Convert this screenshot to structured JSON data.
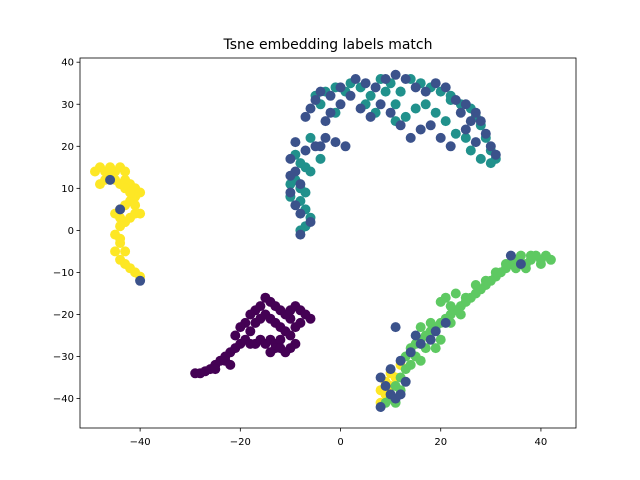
{
  "chart_data": {
    "type": "scatter",
    "title": "Tsne embedding labels match",
    "xlabel": "",
    "ylabel": "",
    "xlim": [
      -52,
      47
    ],
    "ylim": [
      -47,
      41
    ],
    "xticks": [
      -40,
      -20,
      0,
      20,
      40
    ],
    "yticks": [
      -40,
      -30,
      -20,
      -10,
      0,
      10,
      20,
      30,
      40
    ],
    "xtick_labels": [
      "−40",
      "−20",
      "0",
      "20",
      "40"
    ],
    "ytick_labels": [
      "−40",
      "−30",
      "−20",
      "−10",
      "0",
      "10",
      "20",
      "30",
      "40"
    ],
    "grid": false,
    "legend": "none",
    "colors": {
      "purple": "#440154",
      "blue": "#3b528b",
      "teal": "#21918c",
      "green": "#5ec962",
      "yellow": "#fde725"
    },
    "clusters": [
      {
        "color": "purple",
        "points": [
          [
            -29,
            -34
          ],
          [
            -27,
            -33.5
          ],
          [
            -26,
            -33
          ],
          [
            -25,
            -32
          ],
          [
            -24,
            -31
          ],
          [
            -23,
            -31
          ],
          [
            -22,
            -32
          ],
          [
            -22,
            -29
          ],
          [
            -21,
            -28
          ],
          [
            -20,
            -27
          ],
          [
            -19,
            -26
          ],
          [
            -18,
            -27
          ],
          [
            -17,
            -27
          ],
          [
            -16,
            -26
          ],
          [
            -15,
            -27
          ],
          [
            -14,
            -26
          ],
          [
            -13,
            -27
          ],
          [
            -12,
            -26
          ],
          [
            -13,
            -28
          ],
          [
            -14,
            -29
          ],
          [
            -18,
            -24
          ],
          [
            -19,
            -22
          ],
          [
            -17,
            -22
          ],
          [
            -16,
            -21
          ],
          [
            -15,
            -20
          ],
          [
            -14,
            -21
          ],
          [
            -13,
            -22
          ],
          [
            -12,
            -23
          ],
          [
            -11,
            -24
          ],
          [
            -10,
            -25
          ],
          [
            -9,
            -23
          ],
          [
            -10,
            -21
          ],
          [
            -11,
            -20
          ],
          [
            -12,
            -19
          ],
          [
            -13,
            -18
          ],
          [
            -14,
            -17
          ],
          [
            -15,
            -16
          ],
          [
            -16,
            -18
          ],
          [
            -17,
            -19
          ],
          [
            -18,
            -20
          ],
          [
            -10,
            -19
          ],
          [
            -9,
            -18
          ],
          [
            -8,
            -19
          ],
          [
            -7,
            -20
          ],
          [
            -6,
            -21
          ],
          [
            -8,
            -22
          ],
          [
            -9,
            -27
          ],
          [
            -10,
            -28
          ],
          [
            -11,
            -29
          ],
          [
            -12,
            -28
          ],
          [
            -20,
            -23
          ],
          [
            -21,
            -25
          ],
          [
            -23,
            -30
          ],
          [
            -25,
            -33
          ],
          [
            -28,
            -34
          ]
        ]
      },
      {
        "color": "yellow",
        "points": [
          [
            -49,
            14
          ],
          [
            -48,
            15
          ],
          [
            -47,
            14
          ],
          [
            -46,
            15
          ],
          [
            -45,
            14
          ],
          [
            -44,
            15
          ],
          [
            -43,
            14
          ],
          [
            -45,
            12
          ],
          [
            -44,
            11
          ],
          [
            -43,
            12
          ],
          [
            -42,
            11
          ],
          [
            -41,
            10
          ],
          [
            -40,
            9
          ],
          [
            -41,
            8
          ],
          [
            -42,
            7
          ],
          [
            -43,
            6
          ],
          [
            -44,
            5
          ],
          [
            -45,
            4
          ],
          [
            -44,
            3
          ],
          [
            -43,
            2
          ],
          [
            -42,
            3
          ],
          [
            -41,
            4
          ],
          [
            -40,
            4
          ],
          [
            -44,
            1
          ],
          [
            -45,
            -1
          ],
          [
            -44,
            -3
          ],
          [
            -45,
            -5
          ],
          [
            -44,
            -7
          ],
          [
            -43,
            -8
          ],
          [
            -42,
            -9
          ],
          [
            -41,
            -10
          ],
          [
            -40,
            -11
          ],
          [
            -46,
            13
          ],
          [
            -47,
            12
          ],
          [
            -48,
            11
          ],
          [
            -43,
            10
          ],
          [
            -42,
            9
          ],
          [
            -41,
            6
          ],
          [
            -44,
            -2
          ],
          [
            -43,
            -5
          ],
          [
            10,
            -34
          ],
          [
            9,
            -36
          ],
          [
            8,
            -38
          ],
          [
            9,
            -39
          ],
          [
            10,
            -37
          ],
          [
            11,
            -35
          ],
          [
            8,
            -41
          ],
          [
            12,
            -32
          ]
        ]
      },
      {
        "color": "green",
        "points": [
          [
            42,
            -7
          ],
          [
            41,
            -6
          ],
          [
            40,
            -7
          ],
          [
            39,
            -6
          ],
          [
            38,
            -7
          ],
          [
            37,
            -8
          ],
          [
            36,
            -6
          ],
          [
            35,
            -7
          ],
          [
            34,
            -8
          ],
          [
            33,
            -9
          ],
          [
            32,
            -10
          ],
          [
            31,
            -11
          ],
          [
            30,
            -12
          ],
          [
            29,
            -13
          ],
          [
            28,
            -14
          ],
          [
            27,
            -15
          ],
          [
            26,
            -16
          ],
          [
            25,
            -17
          ],
          [
            24,
            -18
          ],
          [
            23,
            -19
          ],
          [
            22,
            -20
          ],
          [
            21,
            -21
          ],
          [
            20,
            -22
          ],
          [
            19,
            -23
          ],
          [
            18,
            -24
          ],
          [
            17,
            -25
          ],
          [
            16,
            -26
          ],
          [
            15,
            -27
          ],
          [
            14,
            -28
          ],
          [
            15,
            -30
          ],
          [
            16,
            -31
          ],
          [
            14,
            -32
          ],
          [
            13,
            -33
          ],
          [
            12,
            -35
          ],
          [
            11,
            -37
          ],
          [
            12,
            -38
          ],
          [
            10,
            -40
          ],
          [
            11,
            -41
          ],
          [
            20,
            -17
          ],
          [
            21,
            -16
          ],
          [
            23,
            -15
          ],
          [
            25,
            -16
          ],
          [
            22,
            -18
          ],
          [
            27,
            -13
          ],
          [
            29,
            -12
          ],
          [
            31,
            -10
          ],
          [
            33,
            -8
          ],
          [
            35,
            -9
          ],
          [
            38,
            -6
          ],
          [
            40,
            -8
          ],
          [
            37,
            -9
          ],
          [
            20,
            -26
          ],
          [
            19,
            -28
          ],
          [
            17,
            -28
          ],
          [
            18,
            -22
          ],
          [
            24,
            -20
          ],
          [
            22,
            -22
          ],
          [
            16,
            -23
          ],
          [
            13,
            -30
          ],
          [
            9,
            -41
          ]
        ]
      },
      {
        "color": "teal",
        "points": [
          [
            -9,
            18
          ],
          [
            -8,
            16
          ],
          [
            -7,
            15
          ],
          [
            -6,
            14
          ],
          [
            -9,
            12
          ],
          [
            -8,
            10
          ],
          [
            -7,
            9
          ],
          [
            -8,
            7
          ],
          [
            -7,
            5
          ],
          [
            -6,
            3
          ],
          [
            -7,
            1
          ],
          [
            -8,
            0
          ],
          [
            -10,
            11
          ],
          [
            -10,
            8
          ],
          [
            -5,
            32
          ],
          [
            -4,
            30
          ],
          [
            -3,
            33
          ],
          [
            -1,
            34
          ],
          [
            1,
            33
          ],
          [
            2,
            35
          ],
          [
            4,
            34
          ],
          [
            6,
            32
          ],
          [
            8,
            36
          ],
          [
            10,
            35
          ],
          [
            12,
            33
          ],
          [
            14,
            36
          ],
          [
            16,
            35
          ],
          [
            18,
            34
          ],
          [
            20,
            33
          ],
          [
            22,
            32
          ],
          [
            24,
            30
          ],
          [
            26,
            29
          ],
          [
            28,
            25
          ],
          [
            29,
            22
          ],
          [
            30,
            19
          ],
          [
            31,
            17
          ],
          [
            28,
            17
          ],
          [
            26,
            19
          ],
          [
            23,
            23
          ],
          [
            21,
            26
          ],
          [
            19,
            28
          ],
          [
            17,
            30
          ],
          [
            15,
            29
          ],
          [
            13,
            27
          ],
          [
            11,
            30
          ],
          [
            9,
            33
          ],
          [
            27,
            27
          ],
          [
            25,
            22
          ],
          [
            30,
            16
          ],
          [
            -1,
            28
          ],
          [
            7,
            28
          ],
          [
            -6,
            22
          ],
          [
            -4,
            17
          ],
          [
            5,
            30
          ],
          [
            11,
            26
          ],
          [
            12,
            33
          ],
          [
            22,
            31
          ]
        ]
      },
      {
        "color": "blue",
        "points": [
          [
            -7,
            27
          ],
          [
            -6,
            29
          ],
          [
            -5,
            31
          ],
          [
            -4,
            33
          ],
          [
            -2,
            32
          ],
          [
            0,
            34
          ],
          [
            3,
            36
          ],
          [
            5,
            35
          ],
          [
            7,
            34
          ],
          [
            9,
            36
          ],
          [
            11,
            37
          ],
          [
            13,
            36
          ],
          [
            15,
            34
          ],
          [
            17,
            33
          ],
          [
            19,
            35
          ],
          [
            21,
            34
          ],
          [
            23,
            31
          ],
          [
            25,
            30
          ],
          [
            27,
            28
          ],
          [
            28,
            26
          ],
          [
            29,
            23
          ],
          [
            30,
            20
          ],
          [
            31,
            18
          ],
          [
            27,
            21
          ],
          [
            25,
            24
          ],
          [
            22,
            20
          ],
          [
            20,
            22
          ],
          [
            18,
            25
          ],
          [
            16,
            24
          ],
          [
            14,
            22
          ],
          [
            12,
            25
          ],
          [
            10,
            28
          ],
          [
            8,
            30
          ],
          [
            6,
            27
          ],
          [
            4,
            29
          ],
          [
            2,
            32
          ],
          [
            0,
            30
          ],
          [
            -2,
            28
          ],
          [
            -3,
            26
          ],
          [
            -5,
            20
          ],
          [
            -7,
            19
          ],
          [
            -9,
            21
          ],
          [
            -10,
            17
          ],
          [
            -9,
            14
          ],
          [
            -8,
            11
          ],
          [
            -10,
            9
          ],
          [
            -9,
            6
          ],
          [
            -8,
            4
          ],
          [
            -6,
            2
          ],
          [
            -8,
            -1
          ],
          [
            -4,
            20
          ],
          [
            -3,
            22
          ],
          [
            -1,
            21
          ],
          [
            1,
            20
          ],
          [
            -46,
            12
          ],
          [
            -44,
            5
          ],
          [
            -40,
            -12
          ],
          [
            34,
            -6
          ],
          [
            36,
            -8
          ],
          [
            21,
            -22
          ],
          [
            19,
            -24
          ],
          [
            16,
            -27
          ],
          [
            14,
            -29
          ],
          [
            12,
            -31
          ],
          [
            10,
            -33
          ],
          [
            8,
            -35
          ],
          [
            9,
            -37
          ],
          [
            10,
            -39
          ],
          [
            11,
            -40
          ],
          [
            8,
            -42
          ],
          [
            11,
            -23
          ],
          [
            13,
            -36
          ],
          [
            12,
            -39
          ],
          [
            15,
            -25
          ],
          [
            18,
            -26
          ],
          [
            -10,
            13
          ],
          [
            24,
            28
          ],
          [
            26,
            26
          ]
        ]
      }
    ]
  }
}
